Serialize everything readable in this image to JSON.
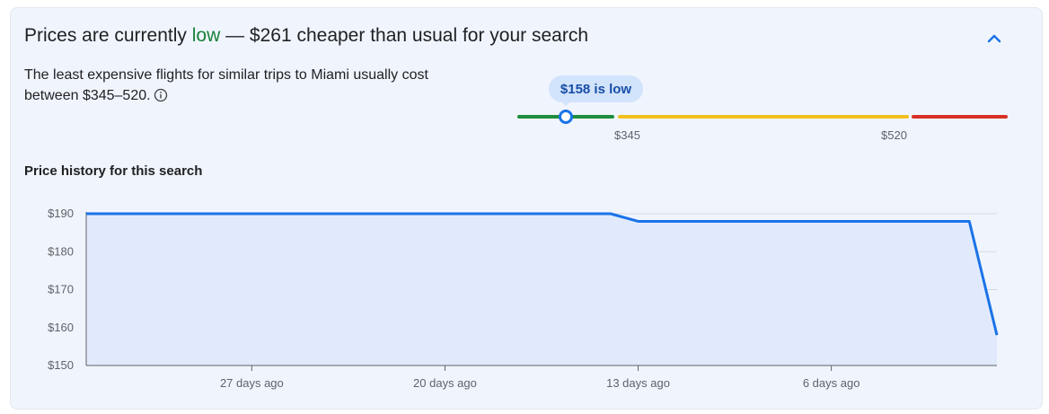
{
  "headline": {
    "prefix": "Prices are currently ",
    "level": "low",
    "suffix": " — $261 cheaper than usual for your search"
  },
  "description": {
    "text": "The least expensive flights for similar trips to Miami usually cost between $345–520."
  },
  "icons": {
    "collapse": "chevron-up-icon",
    "info": "info-icon"
  },
  "price_range": {
    "bubble_label": "$158 is low",
    "current_price": 158,
    "low_threshold_label": "$345",
    "high_threshold_label": "$520",
    "colors": {
      "low": "#1e8e3e",
      "typical": "#f2c01e",
      "high": "#d93025",
      "marker": "#1a73e8"
    }
  },
  "history": {
    "title": "Price history for this search"
  },
  "chart_data": {
    "type": "area",
    "title": "",
    "xlabel": "",
    "ylabel": "",
    "x_unit": "days ago",
    "x": [
      33,
      14,
      13,
      1,
      0
    ],
    "values": [
      190,
      190,
      188,
      188,
      158
    ],
    "ylim": [
      150,
      190
    ],
    "xlim": [
      33,
      0
    ],
    "y_ticks": [
      150,
      160,
      170,
      180,
      190
    ],
    "y_tick_labels": [
      "$150",
      "$160",
      "$170",
      "$180",
      "$190"
    ],
    "x_ticks": [
      27,
      20,
      13,
      6
    ],
    "x_tick_labels": [
      "27 days ago",
      "20 days ago",
      "13 days ago",
      "6 days ago"
    ],
    "grid": true,
    "legend": "none",
    "colors": {
      "line": "#1a73e8",
      "fill": "#e1eafc"
    }
  }
}
